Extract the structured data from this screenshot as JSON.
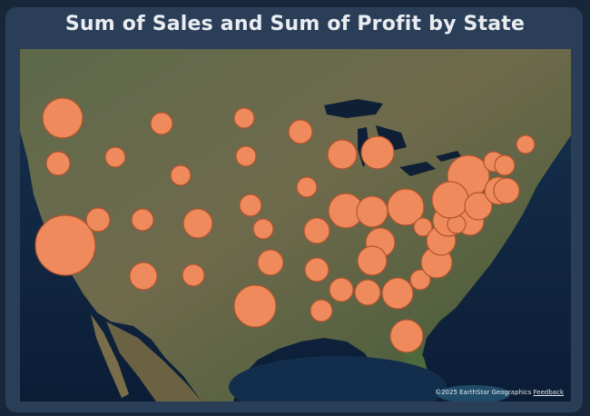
{
  "title": "Sum of Sales and Sum of Profit by State",
  "map": {
    "basemap": "satellite imagery",
    "bubble_color": "#ef8a5c",
    "bubble_stroke": "#b1542f",
    "attribution": "©2025 EarthStar Geographics",
    "feedback_link": "Feedback"
  },
  "legend": null
}
